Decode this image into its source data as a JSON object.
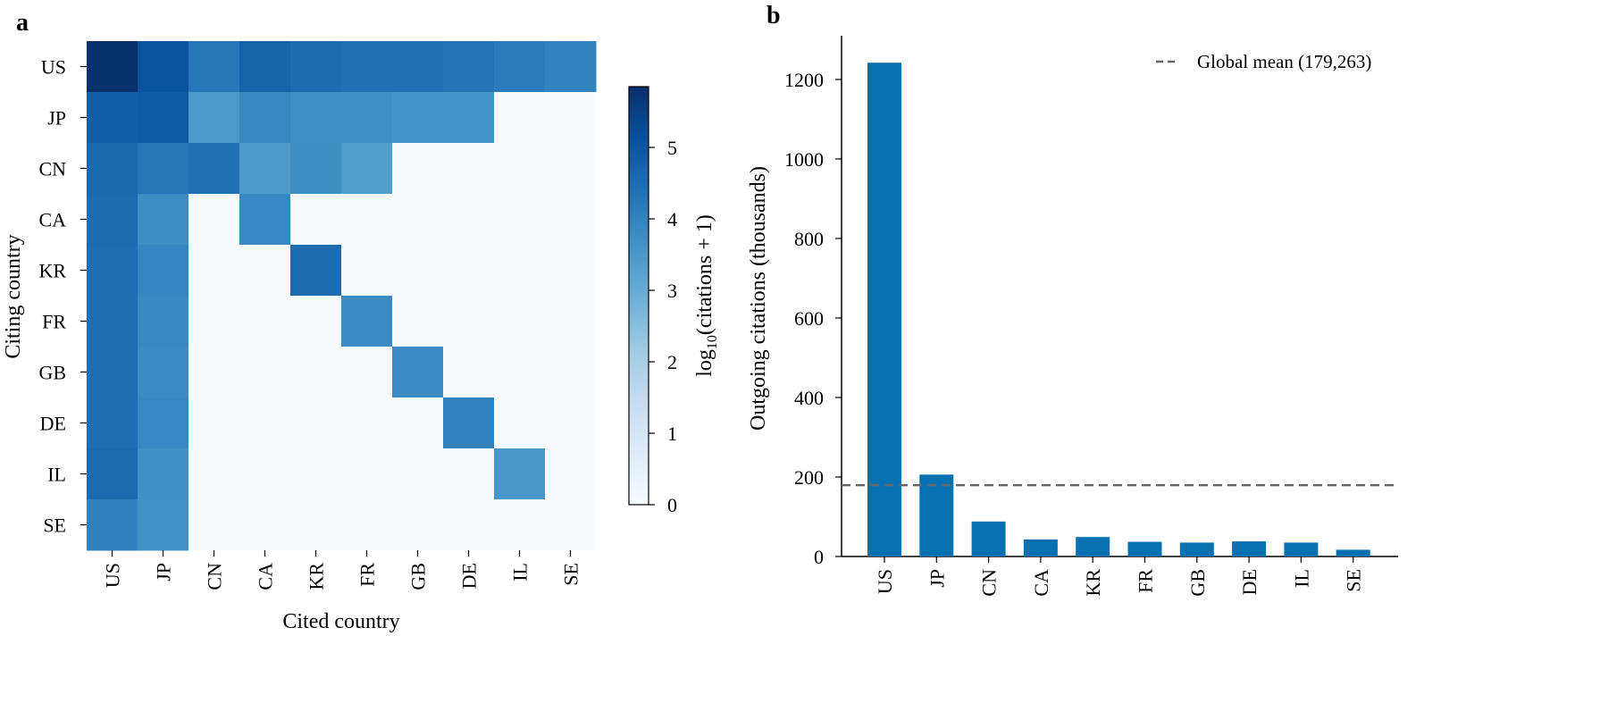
{
  "panel_labels": {
    "a": "a",
    "b": "b"
  },
  "colors": {
    "bar": "#0670b0",
    "mean_line": "#666666",
    "colormap": [
      "#f7fbff",
      "#deebf7",
      "#c6dbef",
      "#9ecae1",
      "#6baed6",
      "#4292c6",
      "#2171b5",
      "#08519c",
      "#08306b"
    ]
  },
  "chart_data": [
    {
      "type": "heatmap",
      "panel": "a",
      "xlabel": "Cited country",
      "ylabel": "Citing country",
      "x_categories": [
        "US",
        "JP",
        "CN",
        "CA",
        "KR",
        "FR",
        "GB",
        "DE",
        "IL",
        "SE"
      ],
      "y_categories": [
        "US",
        "JP",
        "CN",
        "CA",
        "KR",
        "FR",
        "GB",
        "DE",
        "IL",
        "SE"
      ],
      "values": [
        [
          5.85,
          5.05,
          4.25,
          4.7,
          4.5,
          4.4,
          4.4,
          4.35,
          4.15,
          4.0
        ],
        [
          4.8,
          4.9,
          3.5,
          3.85,
          3.7,
          3.7,
          3.6,
          3.6,
          0,
          0
        ],
        [
          4.6,
          4.3,
          4.4,
          3.45,
          3.75,
          3.35,
          0,
          0,
          0,
          0
        ],
        [
          4.5,
          3.75,
          0,
          3.9,
          0,
          0,
          0,
          0,
          0,
          0
        ],
        [
          4.45,
          3.95,
          0,
          0,
          4.5,
          0,
          0,
          0,
          0,
          0
        ],
        [
          4.45,
          3.85,
          0,
          0,
          0,
          3.8,
          0,
          0,
          0,
          0
        ],
        [
          4.45,
          3.8,
          0,
          0,
          0,
          0,
          3.8,
          0,
          0,
          0
        ],
        [
          4.45,
          3.9,
          0,
          0,
          0,
          0,
          0,
          4.0,
          0,
          0
        ],
        [
          4.55,
          3.7,
          0,
          0,
          0,
          0,
          0,
          0,
          3.55,
          0
        ],
        [
          4.05,
          3.65,
          0,
          0,
          0,
          0,
          0,
          0,
          0,
          0
        ]
      ],
      "colorbar": {
        "label_main": "log",
        "label_sub": "10",
        "label_rest": "(citations + 1)",
        "ticks": [
          "0",
          "1",
          "2",
          "3",
          "4",
          "5"
        ],
        "range": [
          0,
          5.85
        ]
      }
    },
    {
      "type": "bar",
      "panel": "b",
      "ylabel": "Outgoing citations (thousands)",
      "categories": [
        "US",
        "JP",
        "CN",
        "CA",
        "KR",
        "FR",
        "GB",
        "DE",
        "IL",
        "SE"
      ],
      "values": [
        1242,
        206,
        88,
        43,
        49,
        37,
        35,
        38,
        35,
        17
      ],
      "yticks": [
        "0",
        "200",
        "400",
        "600",
        "800",
        "1000",
        "1200"
      ],
      "ylim": [
        0,
        1310
      ],
      "mean_line": {
        "label": "Global mean (179,263)",
        "value": 179.263
      }
    }
  ]
}
